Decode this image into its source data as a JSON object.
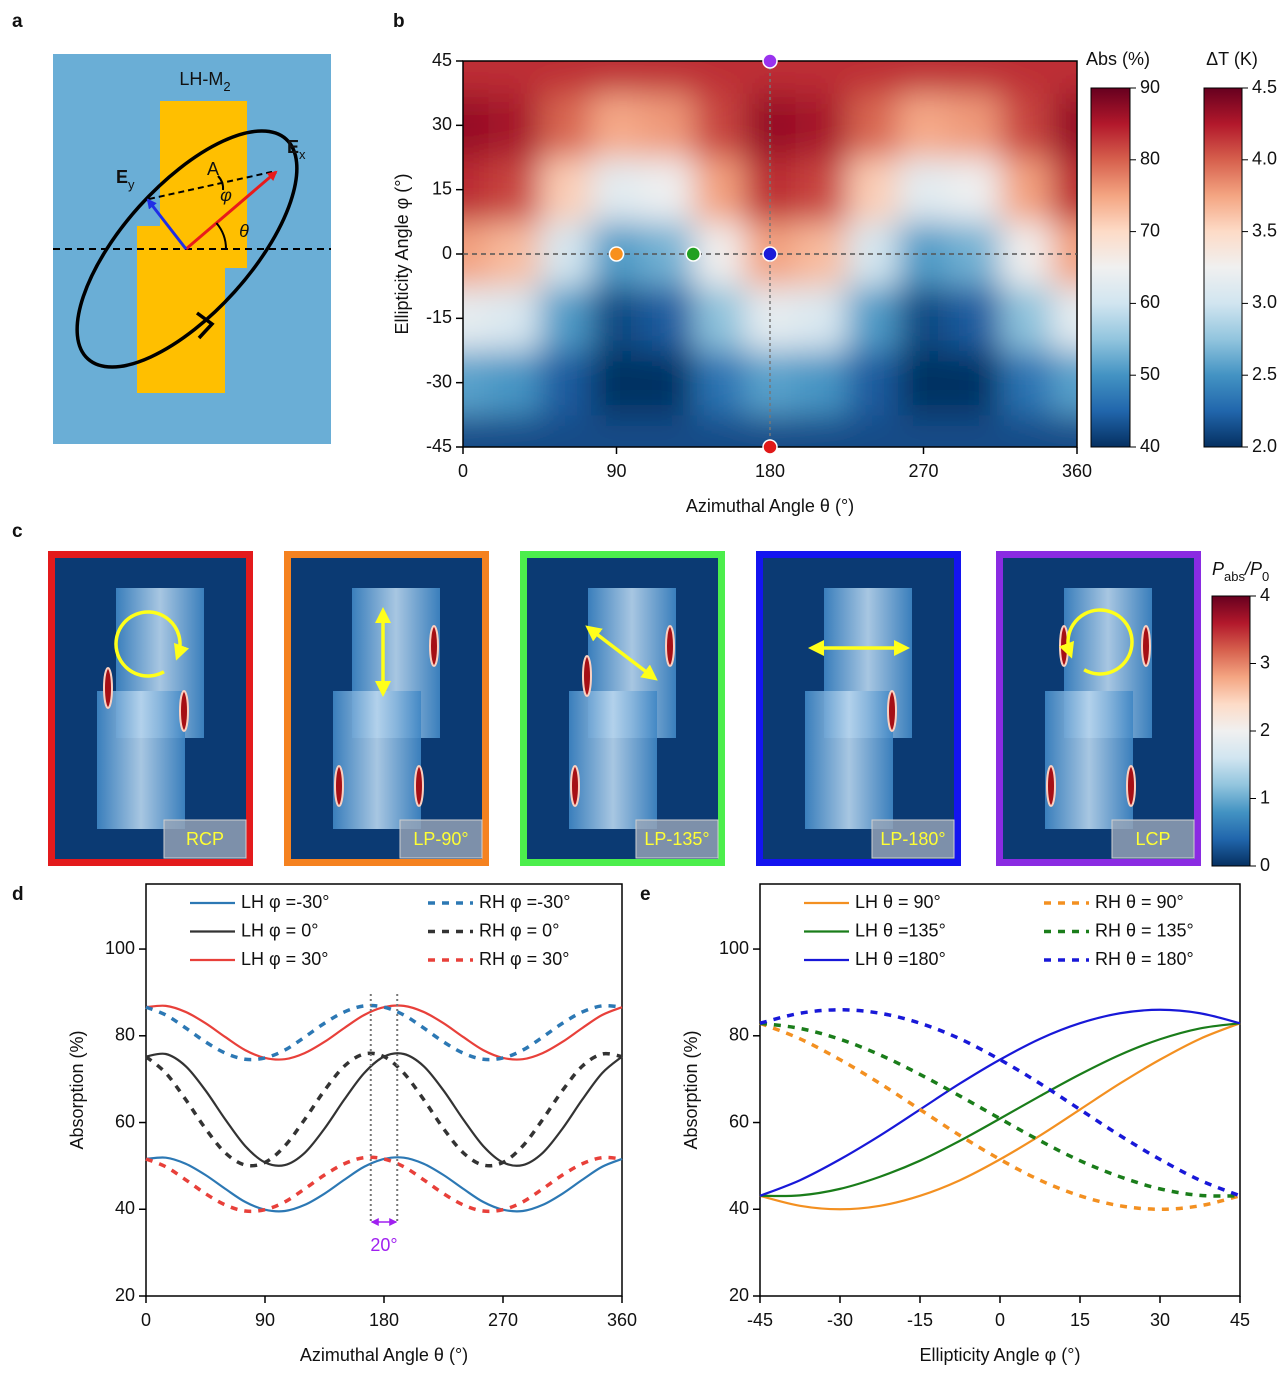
{
  "panel_labels": [
    "a",
    "b",
    "c",
    "d",
    "e"
  ],
  "panel_a": {
    "title": [
      "LH-M",
      "2"
    ],
    "ex": [
      "E",
      "x"
    ],
    "ey": [
      "E",
      "y"
    ],
    "a": "A",
    "phi": "φ",
    "theta": "θ"
  },
  "panel_c": {
    "items": [
      {
        "label": "RCP",
        "color": "#e31a1c"
      },
      {
        "label": "LP-90°",
        "color": "#f58220"
      },
      {
        "label": "LP-135°",
        "color": "#4cee4c"
      },
      {
        "label": "LP-180°",
        "color": "#1414f0"
      },
      {
        "label": "LCP",
        "color": "#8a2be2"
      }
    ],
    "colorbar": {
      "label": [
        "P",
        "abs",
        "/P",
        "0"
      ],
      "lim": [
        0,
        4
      ],
      "ticks": [
        0,
        1,
        2,
        3,
        4
      ]
    }
  },
  "chart_data": [
    {
      "type": "heatmap",
      "x": [
        0,
        30,
        60,
        90,
        120,
        150,
        180,
        210,
        240,
        270,
        300,
        330,
        360
      ],
      "y": [
        -45,
        -30,
        -15,
        0,
        15,
        30,
        45
      ],
      "z": [
        [
          42.5,
          42.5,
          42.5,
          42.5,
          42.5,
          42.5,
          42.5,
          42.5,
          42.5,
          42.5,
          42.5,
          42.5,
          42.5
        ],
        [
          51.4,
          50.2,
          44.1,
          39.1,
          40.2,
          46.4,
          51.4,
          50.2,
          44.1,
          39.1,
          40.2,
          46.4,
          51.4
        ],
        [
          63.3,
          61.4,
          50.8,
          42.2,
          44.1,
          54.7,
          63.3,
          61.4,
          50.8,
          42.2,
          44.1,
          54.7,
          63.3
        ],
        [
          75.2,
          73.0,
          60.7,
          50.8,
          53.0,
          65.3,
          75.2,
          73.0,
          60.7,
          50.8,
          53.0,
          65.3,
          75.2
        ],
        [
          83.8,
          81.9,
          71.3,
          62.7,
          64.6,
          75.2,
          83.8,
          81.9,
          71.3,
          62.7,
          64.6,
          75.2,
          83.8
        ],
        [
          86.9,
          85.8,
          79.6,
          74.6,
          75.8,
          81.9,
          86.9,
          85.8,
          79.6,
          74.6,
          75.8,
          81.9,
          86.9
        ],
        [
          83.5,
          83.5,
          83.5,
          83.5,
          83.5,
          83.5,
          83.5,
          83.5,
          83.5,
          83.5,
          83.5,
          83.5,
          83.5
        ]
      ],
      "xlim": [
        0,
        360
      ],
      "ylim": [
        -45,
        45
      ],
      "xticks": [
        0,
        90,
        180,
        270,
        360
      ],
      "yticks": [
        -45,
        -30,
        -15,
        0,
        15,
        30,
        45
      ],
      "xlabel": "Azimuthal Angle θ (°)",
      "ylabel": "Ellipticity Angle φ (°)",
      "colorbars": [
        {
          "label": "Abs (%)",
          "lim": [
            40,
            90
          ],
          "ticks": [
            40,
            50,
            60,
            70,
            80,
            90
          ]
        },
        {
          "label": "ΔT (K)",
          "lim": [
            2,
            4.5
          ],
          "ticks": [
            {
              "value": 2,
              "label": "2.0"
            },
            2.5,
            {
              "value": 3,
              "label": "3.0"
            },
            3.5,
            {
              "value": 4,
              "label": "4.0"
            },
            4.5
          ]
        }
      ],
      "markers": {
        "x": [
          90,
          135,
          180,
          180,
          180
        ],
        "y": [
          0,
          0,
          0,
          45,
          -45
        ],
        "colors": [
          "#f7901e",
          "#22a022",
          "#1a1ad8",
          "#9933ee",
          "#e01818"
        ]
      }
    },
    {
      "type": "line",
      "x": [
        0,
        15,
        30,
        45,
        60,
        75,
        90,
        105,
        120,
        135,
        150,
        165,
        180,
        195,
        210,
        225,
        240,
        255,
        270,
        285,
        300,
        315,
        330,
        345,
        360
      ],
      "series": [
        {
          "name": "LH φ =-30°",
          "color": "#2c78b4",
          "linestyle": "solid",
          "values": [
            51.6,
            51.9,
            50.5,
            47.9,
            44.7,
            41.7,
            39.9,
            39.6,
            41.0,
            43.6,
            46.8,
            49.8,
            51.6,
            51.9,
            50.5,
            47.9,
            44.7,
            41.7,
            39.9,
            39.6,
            41.0,
            43.6,
            46.8,
            49.8,
            51.6
          ]
        },
        {
          "name": "LH φ = 0°",
          "color": "#333333",
          "linestyle": "solid",
          "values": [
            75.2,
            75.8,
            73.0,
            67.4,
            60.7,
            54.6,
            50.8,
            50.2,
            53.0,
            58.6,
            65.3,
            71.4,
            75.2,
            75.8,
            73.0,
            67.4,
            60.7,
            54.6,
            50.8,
            50.2,
            53.0,
            58.6,
            65.3,
            71.4,
            75.2
          ]
        },
        {
          "name": "LH φ = 30°",
          "color": "#e8403a",
          "linestyle": "solid",
          "values": [
            86.6,
            86.9,
            85.5,
            82.9,
            79.7,
            76.7,
            74.9,
            74.6,
            76.0,
            78.6,
            81.8,
            84.8,
            86.6,
            86.9,
            85.5,
            82.9,
            79.7,
            76.7,
            74.9,
            74.6,
            76.0,
            78.6,
            81.8,
            84.8,
            86.6
          ]
        },
        {
          "name": "RH φ =-30°",
          "color": "#2c78b4",
          "linestyle": "dashed",
          "values": [
            86.6,
            84.8,
            81.8,
            78.6,
            76.0,
            74.6,
            74.9,
            76.7,
            79.7,
            82.9,
            85.5,
            86.9,
            86.6,
            84.8,
            81.8,
            78.6,
            76.0,
            74.6,
            74.9,
            76.7,
            79.7,
            82.9,
            85.5,
            86.9,
            86.6
          ]
        },
        {
          "name": "RH φ = 0°",
          "color": "#333333",
          "linestyle": "dashed",
          "values": [
            75.2,
            71.4,
            65.3,
            58.6,
            53.0,
            50.2,
            50.8,
            54.6,
            60.7,
            67.4,
            73.0,
            75.8,
            75.2,
            71.4,
            65.3,
            58.6,
            53.0,
            50.2,
            50.8,
            54.6,
            60.7,
            67.4,
            73.0,
            75.8,
            75.2
          ]
        },
        {
          "name": "RH φ = 30°",
          "color": "#e8403a",
          "linestyle": "dashed",
          "values": [
            51.6,
            49.8,
            46.8,
            43.6,
            41.0,
            39.6,
            39.9,
            41.7,
            44.7,
            47.9,
            50.5,
            51.9,
            51.6,
            49.8,
            46.8,
            43.6,
            41.0,
            39.6,
            39.9,
            41.7,
            44.7,
            47.9,
            50.5,
            51.9,
            51.6
          ]
        }
      ],
      "xlim": [
        0,
        360
      ],
      "ylim": [
        20,
        115
      ],
      "xticks": [
        0,
        90,
        180,
        270,
        360
      ],
      "yticks": [
        20,
        40,
        60,
        80,
        100
      ],
      "xlabel": "Azimuthal Angle θ (°)",
      "ylabel": "Absorption (%)",
      "annotation": {
        "text": "20°",
        "x": [
          170,
          190
        ],
        "color": "#a020f0"
      }
    },
    {
      "type": "line",
      "x": [
        -45,
        -37.5,
        -30,
        -22.5,
        -15,
        -7.5,
        0,
        7.5,
        15,
        22.5,
        30,
        37.5,
        45
      ],
      "series": [
        {
          "name": "LH θ = 90°",
          "color": "#f39021",
          "linestyle": "solid",
          "values": [
            43.1,
            40.8,
            40.0,
            40.8,
            43.1,
            46.7,
            51.5,
            57.0,
            63.0,
            69.0,
            74.5,
            79.3,
            82.9
          ]
        },
        {
          "name": "LH θ =135°",
          "color": "#1a7d1a",
          "linestyle": "solid",
          "values": [
            43.1,
            43.2,
            44.7,
            47.5,
            51.2,
            55.8,
            60.9,
            66.1,
            71.1,
            75.6,
            79.2,
            81.7,
            82.9
          ]
        },
        {
          "name": "LH θ =180°",
          "color": "#1818d8",
          "linestyle": "solid",
          "values": [
            43.1,
            46.7,
            51.5,
            57.0,
            63.0,
            69.0,
            74.5,
            79.3,
            82.9,
            85.2,
            86.0,
            85.2,
            82.9
          ]
        },
        {
          "name": "RH θ = 90°",
          "color": "#f39021",
          "linestyle": "dashed",
          "values": [
            82.9,
            79.3,
            74.5,
            69.0,
            63.0,
            57.0,
            51.5,
            46.7,
            43.1,
            40.8,
            40.0,
            40.8,
            43.1
          ]
        },
        {
          "name": "RH θ = 135°",
          "color": "#1a7d1a",
          "linestyle": "dashed",
          "values": [
            82.9,
            81.7,
            79.2,
            75.6,
            71.1,
            66.1,
            60.9,
            55.8,
            51.2,
            47.5,
            44.7,
            43.2,
            43.1
          ]
        },
        {
          "name": "RH θ = 180°",
          "color": "#1818d8",
          "linestyle": "dashed",
          "values": [
            82.9,
            85.2,
            86.0,
            85.2,
            82.9,
            79.3,
            74.5,
            69.0,
            63.0,
            57.0,
            51.5,
            46.7,
            43.1
          ]
        }
      ],
      "xlim": [
        -45,
        45
      ],
      "ylim": [
        20,
        115
      ],
      "xticks": [
        -45,
        -30,
        -15,
        0,
        15,
        30,
        45
      ],
      "yticks": [
        20,
        40,
        60,
        80,
        100
      ],
      "xlabel": "Ellipticity Angle φ (°)",
      "ylabel": "Absorption (%)"
    }
  ]
}
